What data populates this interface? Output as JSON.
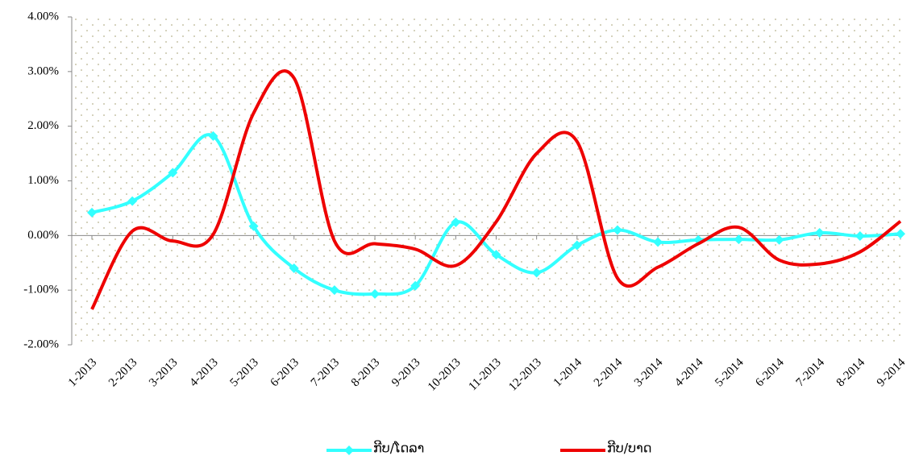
{
  "chart_data": {
    "type": "line",
    "categories": [
      "1-2013",
      "2-2013",
      "3-2013",
      "4-2013",
      "5-2013",
      "6-2013",
      "7-2013",
      "8-2013",
      "9-2013",
      "10-2013",
      "11-2013",
      "12-2013",
      "1-2014",
      "2-2014",
      "3-2014",
      "4-2014",
      "5-2014",
      "6-2014",
      "7-2014",
      "8-2014",
      "9-2014"
    ],
    "series": [
      {
        "name": "ກີບ/ໂດລາ",
        "color": "#33ffff",
        "marker": "diamond",
        "values": [
          0.42,
          0.63,
          1.15,
          1.82,
          0.17,
          -0.6,
          -1.0,
          -1.07,
          -0.92,
          0.24,
          -0.35,
          -0.68,
          -0.18,
          0.1,
          -0.12,
          -0.08,
          -0.07,
          -0.08,
          0.05,
          -0.01,
          0.03
        ]
      },
      {
        "name": "ກີບ/ບາດ",
        "color": "#ee0000",
        "values": [
          -1.35,
          0.08,
          -0.1,
          0.02,
          2.24,
          2.88,
          -0.1,
          -0.15,
          -0.25,
          -0.55,
          0.25,
          1.5,
          1.72,
          -0.78,
          -0.58,
          -0.15,
          0.15,
          -0.45,
          -0.52,
          -0.3,
          0.26
        ]
      }
    ],
    "ylim": [
      -2,
      4
    ],
    "yticks": [
      {
        "value": -2,
        "label": "-2.00%"
      },
      {
        "value": -1,
        "label": "-1.00%"
      },
      {
        "value": 0,
        "label": "0.00%"
      },
      {
        "value": 1,
        "label": "1.00%"
      },
      {
        "value": 2,
        "label": "2.00%"
      },
      {
        "value": 3,
        "label": "3.00%"
      },
      {
        "value": 4,
        "label": "4.00%"
      }
    ],
    "smooth": true,
    "legend": "bottom"
  }
}
